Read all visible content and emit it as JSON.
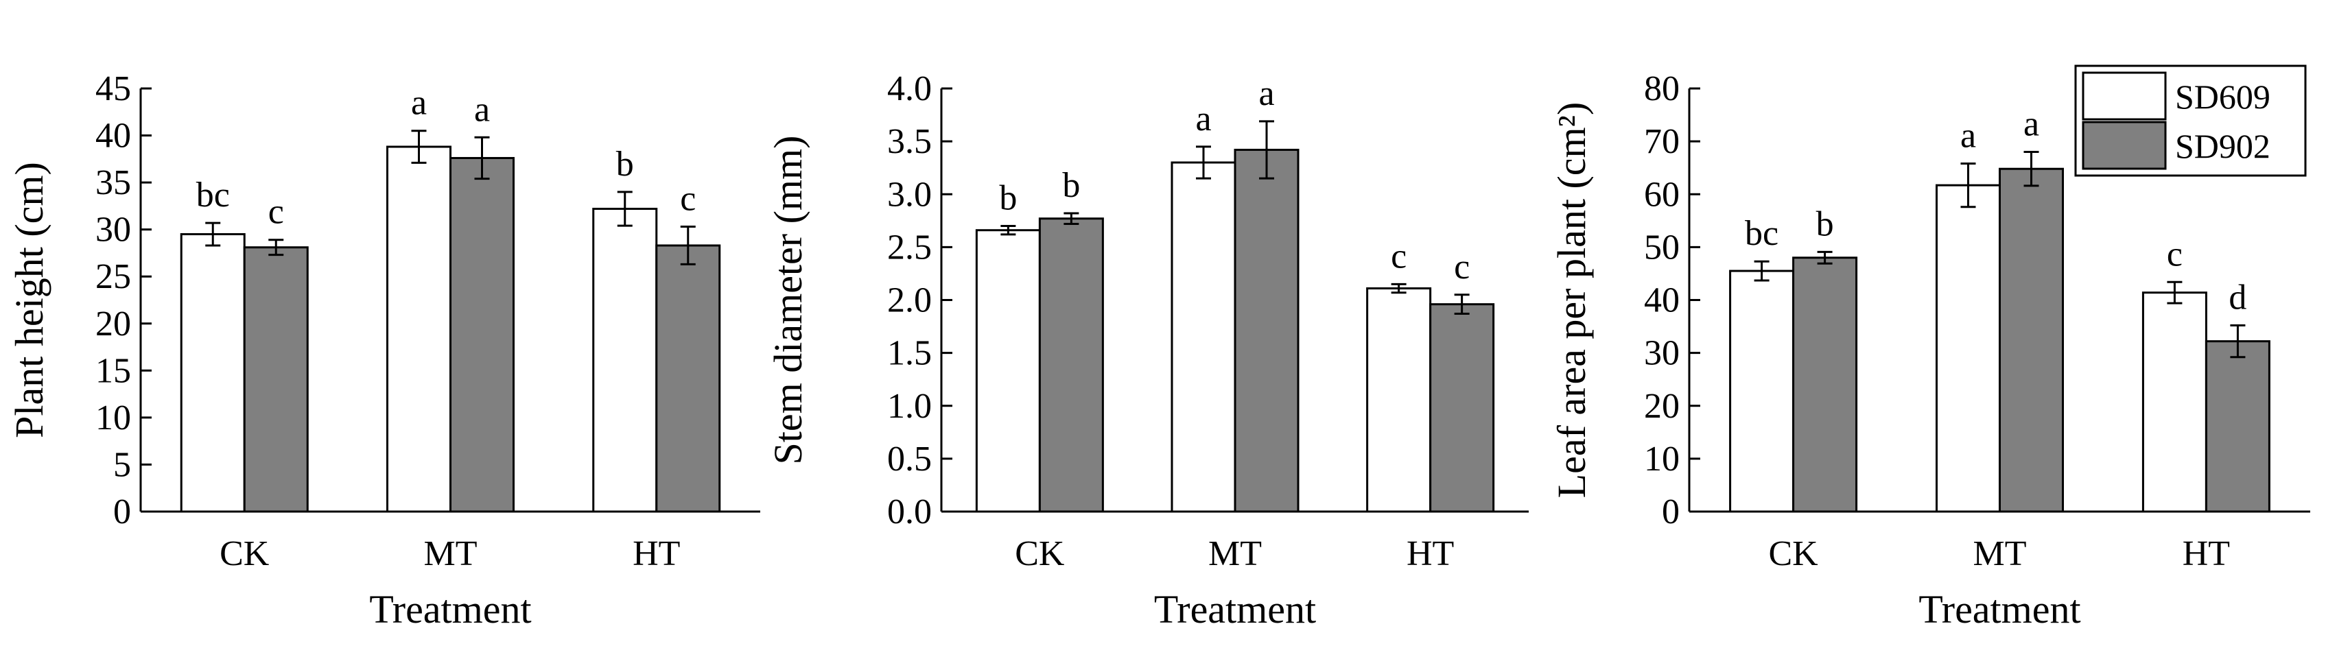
{
  "colors": {
    "SD609": "#ffffff",
    "SD902": "#808080",
    "stroke": "#000000"
  },
  "legend": {
    "entries": [
      "SD609",
      "SD902"
    ],
    "placement": "top-right"
  },
  "chart_data": [
    {
      "type": "bar",
      "categories": [
        "CK",
        "MT",
        "HT"
      ],
      "xlabel": "Treatment",
      "ylabel": "Plant height (cm)",
      "ylim": [
        0,
        45
      ],
      "yticks": [
        0,
        5,
        10,
        15,
        20,
        25,
        30,
        35,
        40,
        45
      ],
      "yticklabels": [
        "0",
        "5",
        "10",
        "15",
        "20",
        "25",
        "30",
        "35",
        "40",
        "45"
      ],
      "series": [
        {
          "name": "SD609",
          "values": [
            29.5,
            38.8,
            32.2
          ],
          "errors": [
            1.2,
            1.7,
            1.8
          ],
          "labels": [
            "bc",
            "a",
            "b"
          ]
        },
        {
          "name": "SD902",
          "values": [
            28.1,
            37.6,
            28.3
          ],
          "errors": [
            0.8,
            2.2,
            2.0
          ],
          "labels": [
            "c",
            "a",
            "c"
          ]
        }
      ]
    },
    {
      "type": "bar",
      "categories": [
        "CK",
        "MT",
        "HT"
      ],
      "xlabel": "Treatment",
      "ylabel": "Stem diameter (mm)",
      "ylim": [
        0,
        4.0
      ],
      "yticks": [
        0,
        0.5,
        1.0,
        1.5,
        2.0,
        2.5,
        3.0,
        3.5,
        4.0
      ],
      "yticklabels": [
        "0.0",
        "0.5",
        "1.0",
        "1.5",
        "2.0",
        "2.5",
        "3.0",
        "3.5",
        "4.0"
      ],
      "series": [
        {
          "name": "SD609",
          "values": [
            2.66,
            3.3,
            2.11
          ],
          "errors": [
            0.04,
            0.15,
            0.04
          ],
          "labels": [
            "b",
            "a",
            "c"
          ]
        },
        {
          "name": "SD902",
          "values": [
            2.77,
            3.42,
            1.96
          ],
          "errors": [
            0.05,
            0.27,
            0.09
          ],
          "labels": [
            "b",
            "a",
            "c"
          ]
        }
      ]
    },
    {
      "type": "bar",
      "categories": [
        "CK",
        "MT",
        "HT"
      ],
      "xlabel": "Treatment",
      "ylabel": "Leaf area per plant (cm²)",
      "ylim": [
        0,
        80
      ],
      "yticks": [
        0,
        10,
        20,
        30,
        40,
        50,
        60,
        70,
        80
      ],
      "yticklabels": [
        "0",
        "10",
        "20",
        "30",
        "40",
        "50",
        "60",
        "70",
        "80"
      ],
      "series": [
        {
          "name": "SD609",
          "values": [
            45.5,
            61.7,
            41.4
          ],
          "errors": [
            1.8,
            4.1,
            2.0
          ],
          "labels": [
            "bc",
            "a",
            "c"
          ]
        },
        {
          "name": "SD902",
          "values": [
            48.0,
            64.8,
            32.2
          ],
          "errors": [
            1.1,
            3.2,
            3.0
          ],
          "labels": [
            "b",
            "a",
            "d"
          ]
        }
      ]
    }
  ]
}
